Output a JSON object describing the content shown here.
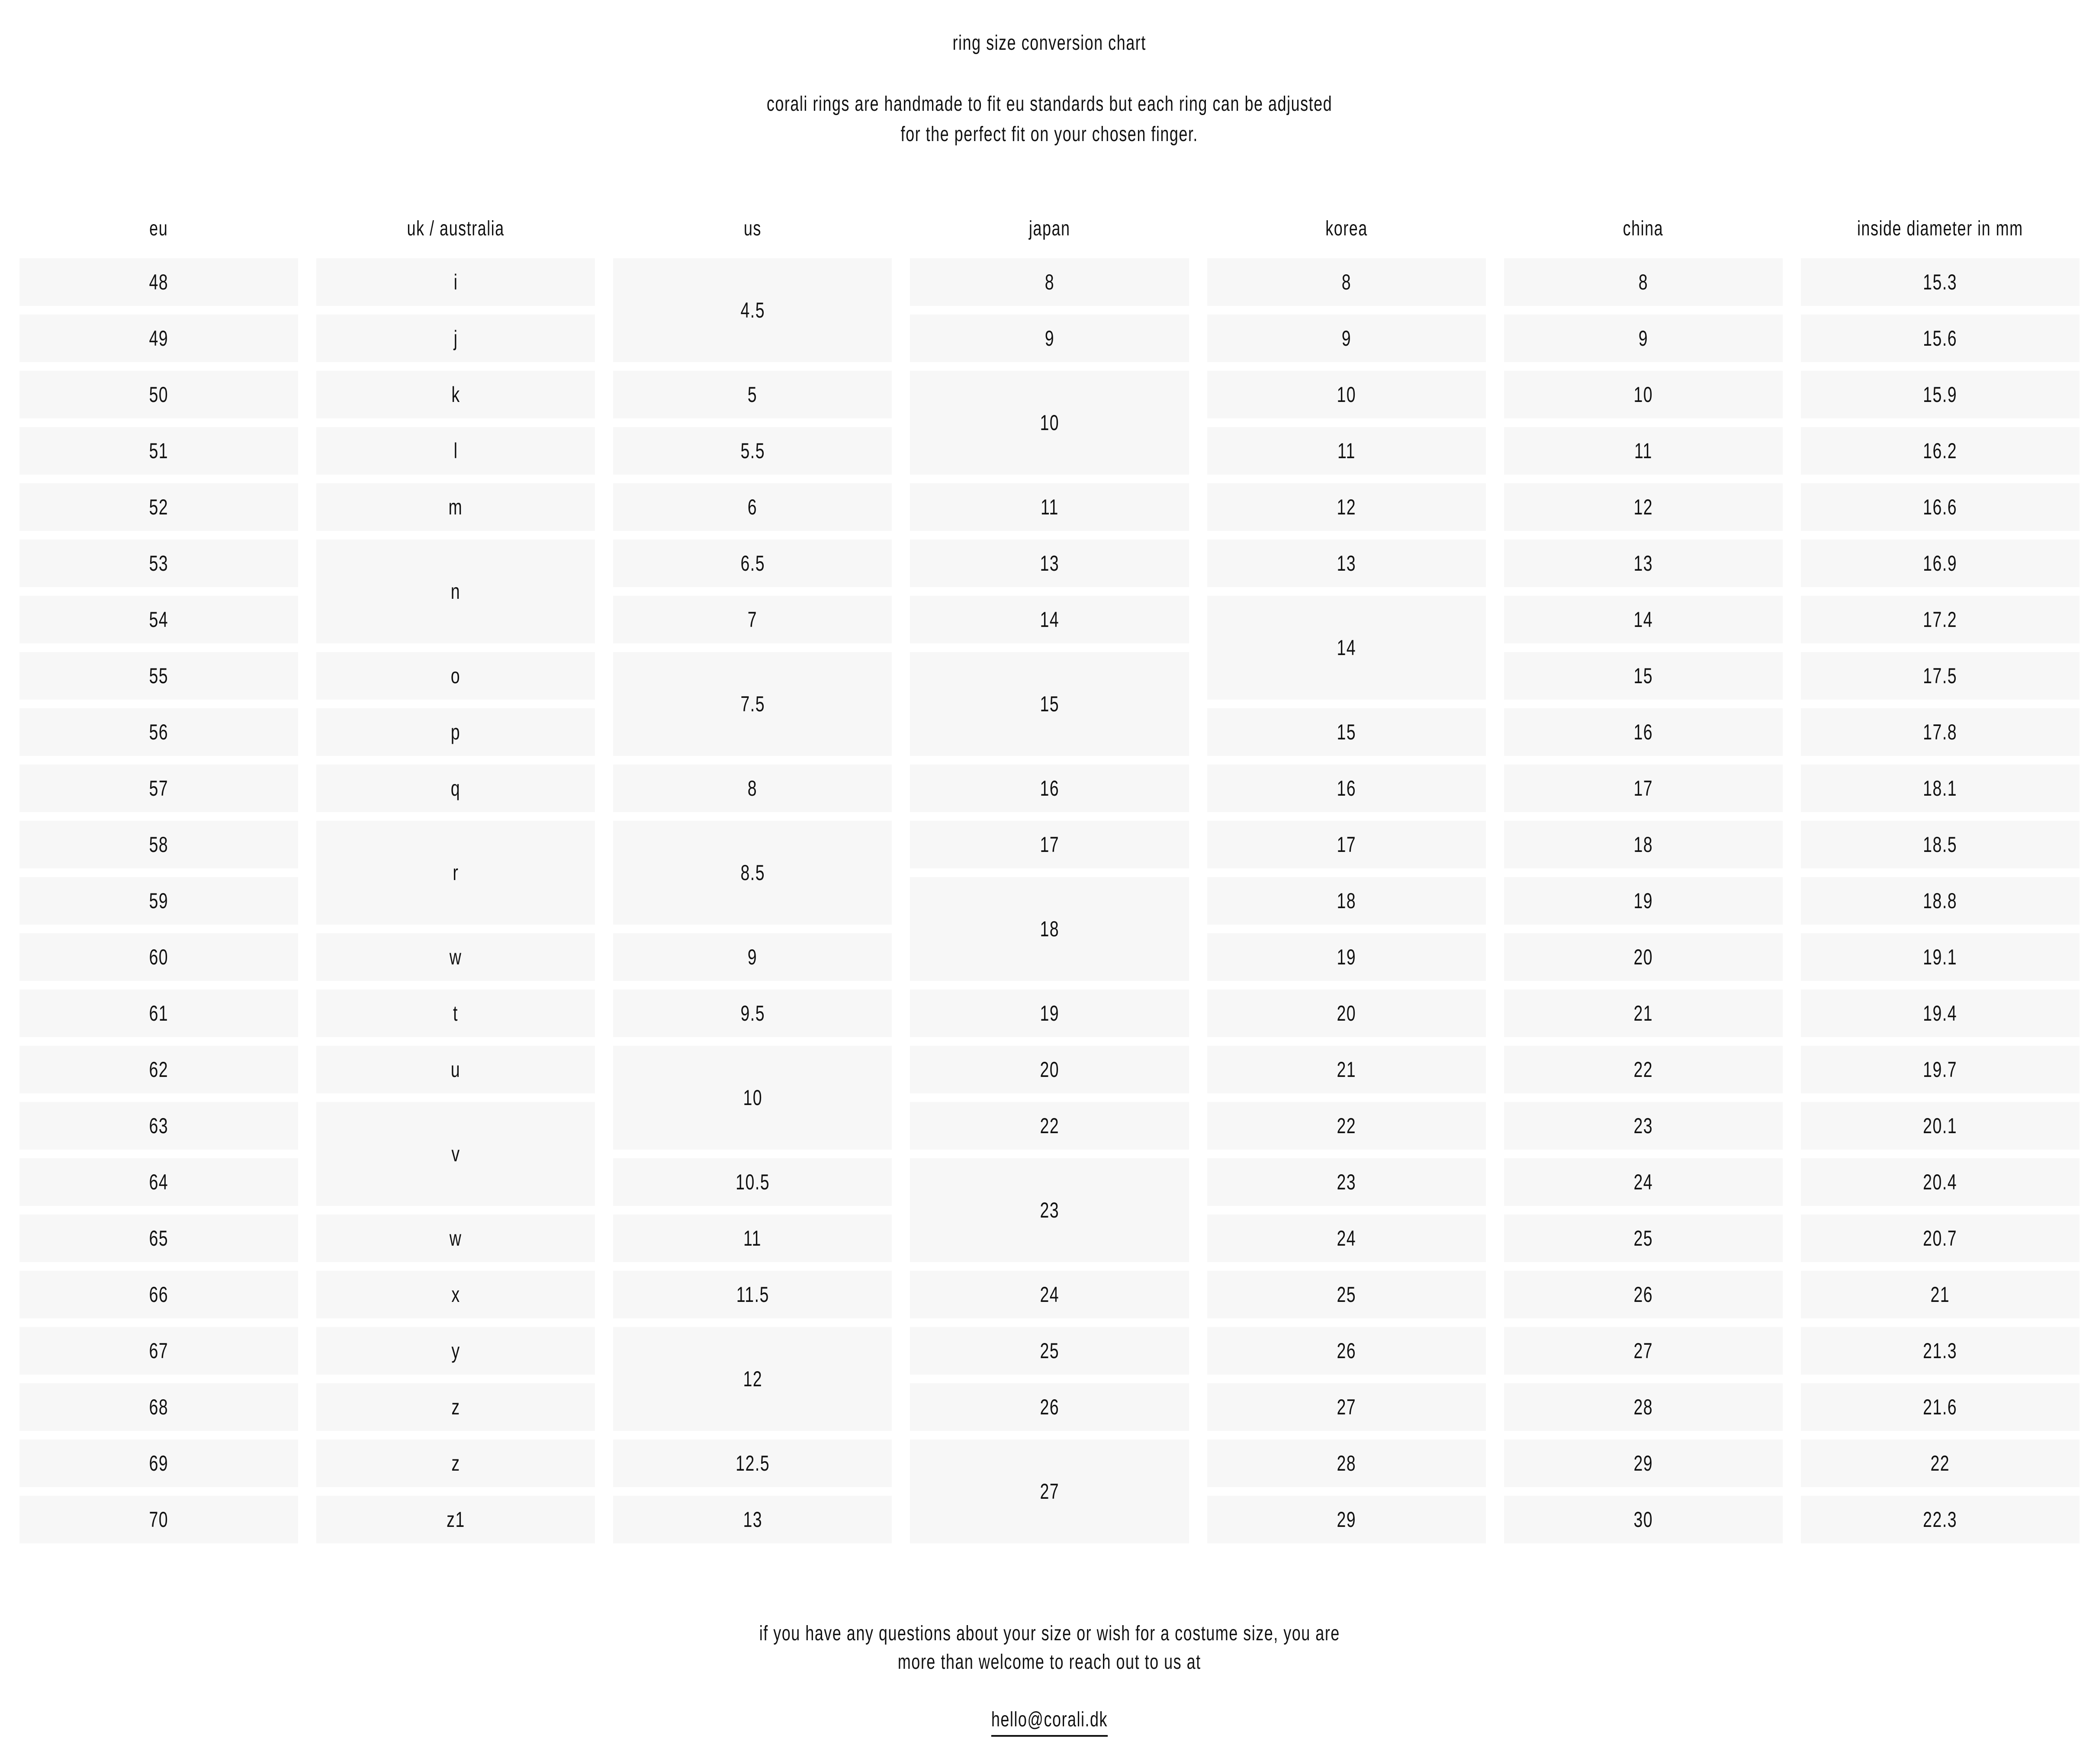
{
  "page": {
    "title": "ring size conversion chart",
    "subtitle_lines": [
      "corali rings are handmade to fit eu standards but each ring can be adjusted",
      "for the perfect fit on your chosen finger."
    ]
  },
  "colors": {
    "page_bg": "#ffffff",
    "cell_bg": "#f7f7f7",
    "text": "#111111"
  },
  "table": {
    "columns": [
      {
        "key": "eu",
        "header": "eu",
        "cells": [
          {
            "v": "48",
            "r": 1
          },
          {
            "v": "49",
            "r": 2
          },
          {
            "v": "50",
            "r": 3
          },
          {
            "v": "51",
            "r": 4
          },
          {
            "v": "52",
            "r": 5
          },
          {
            "v": "53",
            "r": 6
          },
          {
            "v": "54",
            "r": 7
          },
          {
            "v": "55",
            "r": 8
          },
          {
            "v": "56",
            "r": 9
          },
          {
            "v": "57",
            "r": 10
          },
          {
            "v": "58",
            "r": 11
          },
          {
            "v": "59",
            "r": 12
          },
          {
            "v": "60",
            "r": 13
          },
          {
            "v": "61",
            "r": 14
          },
          {
            "v": "62",
            "r": 15
          },
          {
            "v": "63",
            "r": 16
          },
          {
            "v": "64",
            "r": 17
          },
          {
            "v": "65",
            "r": 18
          },
          {
            "v": "66",
            "r": 19
          },
          {
            "v": "67",
            "r": 20
          },
          {
            "v": "68",
            "r": 21
          },
          {
            "v": "69",
            "r": 22
          },
          {
            "v": "70",
            "r": 23
          }
        ]
      },
      {
        "key": "uk-australia",
        "header": "uk / australia",
        "cells": [
          {
            "v": "i",
            "r": 1
          },
          {
            "v": "j",
            "r": 2
          },
          {
            "v": "k",
            "r": 3
          },
          {
            "v": "l",
            "r": 4
          },
          {
            "v": "m",
            "r": 5
          },
          {
            "v": "n",
            "r": 6,
            "s": 2
          },
          {
            "v": "o",
            "r": 8
          },
          {
            "v": "p",
            "r": 9
          },
          {
            "v": "q",
            "r": 10
          },
          {
            "v": "r",
            "r": 11,
            "s": 2
          },
          {
            "v": "w",
            "r": 13
          },
          {
            "v": "t",
            "r": 14
          },
          {
            "v": "u",
            "r": 15
          },
          {
            "v": "v",
            "r": 16,
            "s": 2
          },
          {
            "v": "w",
            "r": 18
          },
          {
            "v": "x",
            "r": 19
          },
          {
            "v": "y",
            "r": 20
          },
          {
            "v": "z",
            "r": 21
          },
          {
            "v": "z",
            "r": 22
          },
          {
            "v": "z1",
            "r": 23
          }
        ]
      },
      {
        "key": "us",
        "header": "us",
        "cells": [
          {
            "v": "4.5",
            "r": 1,
            "s": 2
          },
          {
            "v": "5",
            "r": 3
          },
          {
            "v": "5.5",
            "r": 4
          },
          {
            "v": "6",
            "r": 5
          },
          {
            "v": "6.5",
            "r": 6
          },
          {
            "v": "7",
            "r": 7
          },
          {
            "v": "7.5",
            "r": 8,
            "s": 2
          },
          {
            "v": "8",
            "r": 10
          },
          {
            "v": "8.5",
            "r": 11,
            "s": 2
          },
          {
            "v": "9",
            "r": 13
          },
          {
            "v": "9.5",
            "r": 14
          },
          {
            "v": "10",
            "r": 15,
            "s": 2
          },
          {
            "v": "10.5",
            "r": 17
          },
          {
            "v": "11",
            "r": 18
          },
          {
            "v": "11.5",
            "r": 19
          },
          {
            "v": "12",
            "r": 20,
            "s": 2
          },
          {
            "v": "12.5",
            "r": 22
          },
          {
            "v": "13",
            "r": 23
          }
        ]
      },
      {
        "key": "japan",
        "header": "japan",
        "cells": [
          {
            "v": "8",
            "r": 1
          },
          {
            "v": "9",
            "r": 2
          },
          {
            "v": "10",
            "r": 3,
            "s": 2
          },
          {
            "v": "11",
            "r": 5
          },
          {
            "v": "13",
            "r": 6
          },
          {
            "v": "14",
            "r": 7
          },
          {
            "v": "15",
            "r": 8,
            "s": 2
          },
          {
            "v": "16",
            "r": 10
          },
          {
            "v": "17",
            "r": 11
          },
          {
            "v": "18",
            "r": 12,
            "s": 2
          },
          {
            "v": "19",
            "r": 14
          },
          {
            "v": "20",
            "r": 15
          },
          {
            "v": "22",
            "r": 16
          },
          {
            "v": "23",
            "r": 17,
            "s": 2
          },
          {
            "v": "24",
            "r": 19
          },
          {
            "v": "25",
            "r": 20
          },
          {
            "v": "26",
            "r": 21
          },
          {
            "v": "27",
            "r": 22,
            "s": 2
          }
        ]
      },
      {
        "key": "korea",
        "header": "korea",
        "cells": [
          {
            "v": "8",
            "r": 1
          },
          {
            "v": "9",
            "r": 2
          },
          {
            "v": "10",
            "r": 3
          },
          {
            "v": "11",
            "r": 4
          },
          {
            "v": "12",
            "r": 5
          },
          {
            "v": "13",
            "r": 6
          },
          {
            "v": "14",
            "r": 7,
            "s": 2
          },
          {
            "v": "15",
            "r": 9
          },
          {
            "v": "16",
            "r": 10
          },
          {
            "v": "17",
            "r": 11
          },
          {
            "v": "18",
            "r": 12
          },
          {
            "v": "19",
            "r": 13
          },
          {
            "v": "20",
            "r": 14
          },
          {
            "v": "21",
            "r": 15
          },
          {
            "v": "22",
            "r": 16
          },
          {
            "v": "23",
            "r": 17
          },
          {
            "v": "24",
            "r": 18
          },
          {
            "v": "25",
            "r": 19
          },
          {
            "v": "26",
            "r": 20
          },
          {
            "v": "27",
            "r": 21
          },
          {
            "v": "28",
            "r": 22
          },
          {
            "v": "29",
            "r": 23
          }
        ]
      },
      {
        "key": "china",
        "header": "china",
        "cells": [
          {
            "v": "8",
            "r": 1
          },
          {
            "v": "9",
            "r": 2
          },
          {
            "v": "10",
            "r": 3
          },
          {
            "v": "11",
            "r": 4
          },
          {
            "v": "12",
            "r": 5
          },
          {
            "v": "13",
            "r": 6
          },
          {
            "v": "14",
            "r": 7
          },
          {
            "v": "15",
            "r": 8
          },
          {
            "v": "16",
            "r": 9
          },
          {
            "v": "17",
            "r": 10
          },
          {
            "v": "18",
            "r": 11
          },
          {
            "v": "19",
            "r": 12
          },
          {
            "v": "20",
            "r": 13
          },
          {
            "v": "21",
            "r": 14
          },
          {
            "v": "22",
            "r": 15
          },
          {
            "v": "23",
            "r": 16
          },
          {
            "v": "24",
            "r": 17
          },
          {
            "v": "25",
            "r": 18
          },
          {
            "v": "26",
            "r": 19
          },
          {
            "v": "27",
            "r": 20
          },
          {
            "v": "28",
            "r": 21
          },
          {
            "v": "29",
            "r": 22
          },
          {
            "v": "30",
            "r": 23
          }
        ]
      },
      {
        "key": "inside-diameter",
        "header": "inside diameter in mm",
        "cells": [
          {
            "v": "15.3",
            "r": 1
          },
          {
            "v": "15.6",
            "r": 2
          },
          {
            "v": "15.9",
            "r": 3
          },
          {
            "v": "16.2",
            "r": 4
          },
          {
            "v": "16.6",
            "r": 5
          },
          {
            "v": "16.9",
            "r": 6
          },
          {
            "v": "17.2",
            "r": 7
          },
          {
            "v": "17.5",
            "r": 8
          },
          {
            "v": "17.8",
            "r": 9
          },
          {
            "v": "18.1",
            "r": 10
          },
          {
            "v": "18.5",
            "r": 11
          },
          {
            "v": "18.8",
            "r": 12
          },
          {
            "v": "19.1",
            "r": 13
          },
          {
            "v": "19.4",
            "r": 14
          },
          {
            "v": "19.7",
            "r": 15
          },
          {
            "v": "20.1",
            "r": 16
          },
          {
            "v": "20.4",
            "r": 17
          },
          {
            "v": "20.7",
            "r": 18
          },
          {
            "v": "21",
            "r": 19
          },
          {
            "v": "21.3",
            "r": 20
          },
          {
            "v": "21.6",
            "r": 21
          },
          {
            "v": "22",
            "r": 22
          },
          {
            "v": "22.3",
            "r": 23
          }
        ]
      }
    ]
  },
  "footer": {
    "note_lines": [
      "if you have any questions about your size or wish for a costume size, you are",
      "more than welcome to reach out to us at"
    ],
    "email": "hello@corali.dk"
  }
}
